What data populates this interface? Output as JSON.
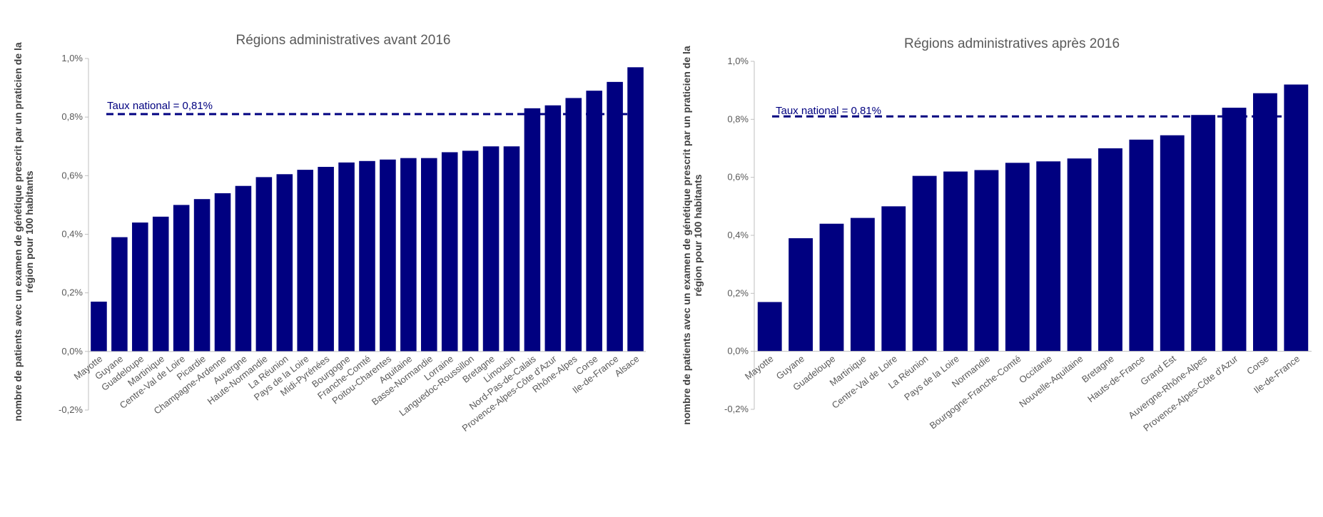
{
  "chart_data": [
    {
      "type": "bar",
      "title": "Régions administratives avant 2016",
      "ylabel_line1": "nombre de patients avec un examen de génétique prescrit par un praticien de la",
      "ylabel_line2": "région pour 100 habitants",
      "ylim": [
        -0.2,
        1.0
      ],
      "yticks": [
        -0.2,
        0.0,
        0.2,
        0.4,
        0.6,
        0.8,
        1.0
      ],
      "ytick_labels": [
        "-0,2%",
        "0,0%",
        "0,2%",
        "0,4%",
        "0,6%",
        "0,8%",
        "1,0%"
      ],
      "reference_line": {
        "label": "Taux national = 0,81%",
        "value": 0.81
      },
      "bar_color": "#000080",
      "categories": [
        "Mayotte",
        "Guyane",
        "Guadeloupe",
        "Martinique",
        "Centre-Val de Loire",
        "Picardie",
        "Champagne-Ardenne",
        "Auvergne",
        "Haute-Normandie",
        "La Réunion",
        "Pays de la Loire",
        "Midi-Pyrénées",
        "Bourgogne",
        "Franche-Comté",
        "Poitou-Charentes",
        "Aquitaine",
        "Basse-Normandie",
        "Lorraine",
        "Languedoc-Roussillon",
        "Bretagne",
        "Limousin",
        "Nord-Pas-de-Calais",
        "Provence-Alpes-Côte d'Azur",
        "Rhône-Alpes",
        "Corse",
        "Ile-de-France",
        "Alsace"
      ],
      "values": [
        0.17,
        0.39,
        0.44,
        0.46,
        0.5,
        0.52,
        0.54,
        0.565,
        0.595,
        0.605,
        0.62,
        0.63,
        0.645,
        0.65,
        0.655,
        0.66,
        0.66,
        0.68,
        0.685,
        0.7,
        0.7,
        0.83,
        0.84,
        0.865,
        0.89,
        0.92,
        0.97
      ]
    },
    {
      "type": "bar",
      "title": "Régions administratives après 2016",
      "ylabel_line1": "nombre de patients avec un examen de génétique prescrit par un praticien de la",
      "ylabel_line2": "région pour 100 habitants",
      "ylim": [
        -0.2,
        1.0
      ],
      "yticks": [
        -0.2,
        0.0,
        0.2,
        0.4,
        0.6,
        0.8,
        1.0
      ],
      "ytick_labels": [
        "-0,2%",
        "0,0%",
        "0,2%",
        "0,4%",
        "0,6%",
        "0,8%",
        "1,0%"
      ],
      "reference_line": {
        "label": "Taux national = 0,81%",
        "value": 0.81
      },
      "bar_color": "#000080",
      "categories": [
        "Mayotte",
        "Guyane",
        "Guadeloupe",
        "Martinique",
        "Centre-Val de Loire",
        "La Réunion",
        "Pays de la Loire",
        "Normandie",
        "Bourgogne-Franche-Comté",
        "Occitanie",
        "Nouvelle-Aquitaine",
        "Bretagne",
        "Hauts-de-France",
        "Grand Est",
        "Auvergne-Rhône-Alpes",
        "Provence-Alpes-Côte d'Azur",
        "Corse",
        "Ile-de-France"
      ],
      "values": [
        0.17,
        0.39,
        0.44,
        0.46,
        0.5,
        0.605,
        0.62,
        0.625,
        0.65,
        0.655,
        0.665,
        0.7,
        0.73,
        0.745,
        0.815,
        0.84,
        0.89,
        0.92
      ]
    }
  ]
}
